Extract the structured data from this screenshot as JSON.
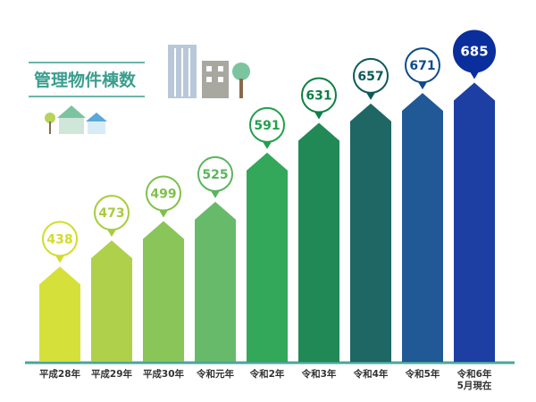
{
  "chart_data": {
    "type": "bar",
    "title": "管理物件棟数",
    "categories": [
      "平成28年",
      "平成29年",
      "平成30年",
      "令和元年",
      "令和2年",
      "令和3年",
      "令和4年",
      "令和5年",
      "令和6年\n5月現在"
    ],
    "values": [
      438,
      473,
      499,
      525,
      591,
      631,
      657,
      671,
      685
    ],
    "colors": [
      "#d2dd2a",
      "#a8cc3c",
      "#7fc04a",
      "#5bb45e",
      "#22a04c",
      "#0e7f46",
      "#0b5a58",
      "#0d4b8c",
      "#0a2f9c"
    ],
    "ylim": [
      310,
      700
    ]
  }
}
